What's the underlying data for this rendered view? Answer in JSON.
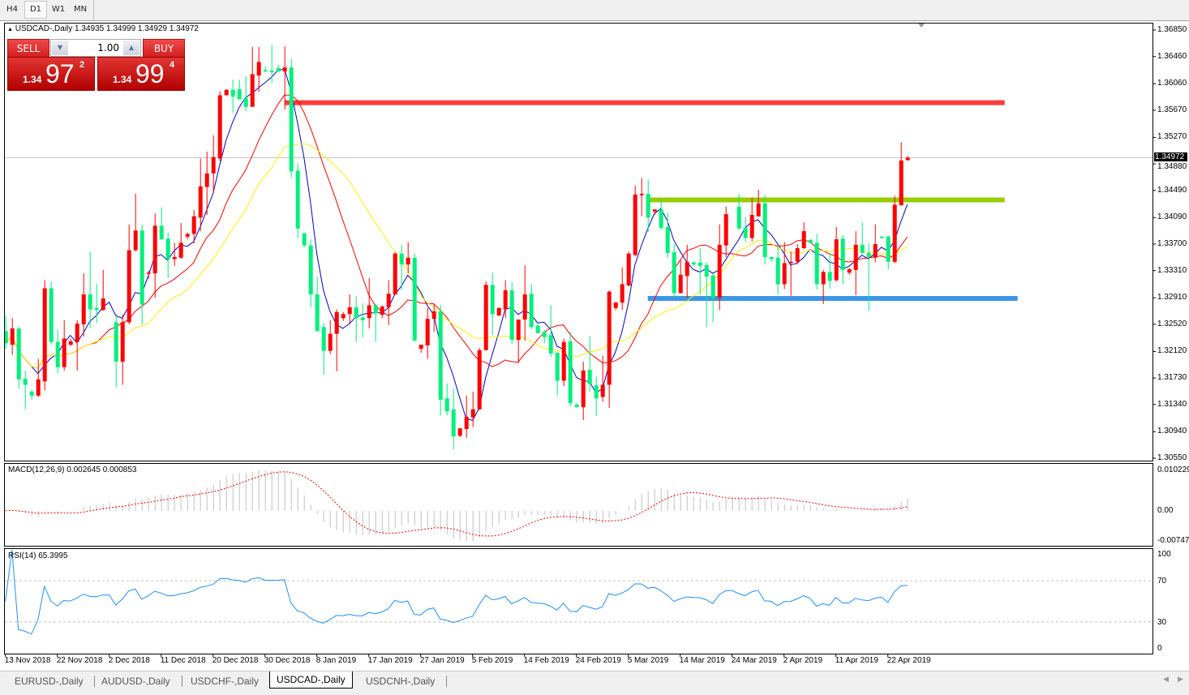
{
  "toolbar": {
    "timeframes": [
      {
        "label": "H4",
        "active": false
      },
      {
        "label": "D1",
        "active": true
      },
      {
        "label": "W1",
        "active": false
      },
      {
        "label": "MN",
        "active": false
      }
    ]
  },
  "chart": {
    "symbol_info": "USDCAD-,Daily  1.34935 1.34999 1.34929 1.34972",
    "current_price": "1.34972",
    "price_axis": [
      "1.36850",
      "1.36460",
      "1.36060",
      "1.35670",
      "1.35270",
      "1.34880",
      "1.34490",
      "1.34090",
      "1.33700",
      "1.33310",
      "1.32910",
      "1.32520",
      "1.32120",
      "1.31730",
      "1.31340",
      "1.30940",
      "1.30550"
    ],
    "date_axis": [
      "13 Nov 2018",
      "22 Nov 2018",
      "2 Dec 2018",
      "11 Dec 2018",
      "20 Dec 2018",
      "30 Dec 2018",
      "8 Jan 2019",
      "17 Jan 2019",
      "27 Jan 2019",
      "5 Feb 2019",
      "14 Feb 2019",
      "24 Feb 2019",
      "5 Mar 2019",
      "14 Mar 2019",
      "24 Mar 2019",
      "2 Apr 2019",
      "11 Apr 2019",
      "22 Apr 2019"
    ]
  },
  "trade_panel": {
    "sell_label": "SELL",
    "buy_label": "BUY",
    "lot": "1.00",
    "down_arrow": "▼",
    "up_arrow": "▲",
    "sell_price": {
      "prefix": "1.34",
      "pips": "97",
      "fraction": "2"
    },
    "buy_price": {
      "prefix": "1.34",
      "pips": "99",
      "fraction": "4"
    }
  },
  "indicators": {
    "macd": {
      "label": "MACD(12,26,9) 0.002645 0.000853",
      "scale": [
        "0.010229",
        "0.00",
        "-0.007477"
      ]
    },
    "rsi": {
      "label": "RSI(14) 65.3995",
      "scale": [
        "100",
        "70",
        "30",
        "0"
      ]
    }
  },
  "tabs": [
    {
      "label": "EURUSD-,Daily",
      "active": false
    },
    {
      "label": "AUDUSD-,Daily",
      "active": false
    },
    {
      "label": "USDCHF-,Daily",
      "active": false
    },
    {
      "label": "USDCAD-,Daily",
      "active": true
    },
    {
      "label": "USDCNH-,Daily",
      "active": false
    }
  ],
  "colors": {
    "bull_candle": "#ff0000",
    "bear_candle": "#00f07c",
    "ma_fast": "#0000c8",
    "ma_mid": "#ff0000",
    "ma_slow": "#ffee00",
    "resistance_line": "#ff3b3b",
    "range_top_line": "#99cc00",
    "support_line": "#3c96e6",
    "macd_hist": "#c0c0c0",
    "macd_signal": "#ff0000",
    "rsi_line": "#1e90ff"
  },
  "chart_data": {
    "type": "candlestick",
    "symbol": "USDCAD-",
    "timeframe": "Daily",
    "ylim": [
      1.3055,
      1.3685
    ],
    "ohlc_format": [
      "open",
      "high",
      "low",
      "close"
    ],
    "candles": [
      [
        1.3242,
        1.3264,
        1.3216,
        1.3224
      ],
      [
        1.3222,
        1.3261,
        1.3207,
        1.3246
      ],
      [
        1.3246,
        1.3248,
        1.3157,
        1.3171
      ],
      [
        1.3172,
        1.3184,
        1.3127,
        1.3163
      ],
      [
        1.3153,
        1.3155,
        1.3141,
        1.3147
      ],
      [
        1.3147,
        1.3201,
        1.3145,
        1.3171
      ],
      [
        1.3168,
        1.3317,
        1.3155,
        1.3305
      ],
      [
        1.3305,
        1.3315,
        1.3222,
        1.3226
      ],
      [
        1.3226,
        1.3244,
        1.318,
        1.3189
      ],
      [
        1.3189,
        1.3258,
        1.3184,
        1.3231
      ],
      [
        1.3222,
        1.3231,
        1.322,
        1.3227
      ],
      [
        1.3226,
        1.3258,
        1.3184,
        1.3253
      ],
      [
        1.3252,
        1.3327,
        1.3234,
        1.3296
      ],
      [
        1.3296,
        1.3359,
        1.3246,
        1.3274
      ],
      [
        1.3276,
        1.3311,
        1.3254,
        1.3273
      ],
      [
        1.3273,
        1.3332,
        1.3272,
        1.329
      ],
      null,
      [
        1.3255,
        1.3267,
        1.3159,
        1.3197
      ],
      [
        1.3197,
        1.3266,
        1.3163,
        1.3255
      ],
      [
        1.3255,
        1.3399,
        1.3252,
        1.3361
      ],
      [
        1.3361,
        1.3444,
        1.3359,
        1.339
      ],
      [
        1.339,
        1.3399,
        1.3252,
        1.3281
      ],
      [
        1.3327,
        1.3331,
        1.3319,
        1.3328
      ],
      [
        1.3327,
        1.3415,
        1.3291,
        1.3397
      ],
      [
        1.3397,
        1.3424,
        1.3376,
        1.3377
      ],
      [
        1.3378,
        1.3387,
        1.332,
        1.3348
      ],
      [
        1.3348,
        1.3372,
        1.3338,
        1.3351
      ],
      [
        1.335,
        1.3401,
        1.3348,
        1.3372
      ],
      [
        1.3381,
        1.3387,
        1.3377,
        1.3385
      ],
      [
        1.3385,
        1.342,
        1.3371,
        1.3411
      ],
      [
        1.3409,
        1.3496,
        1.3389,
        1.3455
      ],
      [
        1.3454,
        1.3506,
        1.3413,
        1.3474
      ],
      [
        1.3474,
        1.353,
        1.3445,
        1.3498
      ],
      [
        1.3496,
        1.3595,
        1.3492,
        1.3589
      ],
      [
        1.3589,
        1.3598,
        1.3589,
        1.3597
      ],
      [
        1.3597,
        1.3612,
        1.3563,
        1.3587
      ],
      [
        1.3598,
        1.3612,
        1.3583,
        1.3583
      ],
      [
        1.3585,
        1.3617,
        1.3566,
        1.3572
      ],
      [
        1.3572,
        1.366,
        1.3572,
        1.362
      ],
      [
        1.3618,
        1.366,
        1.3594,
        1.3638
      ],
      [
        1.3626,
        1.3631,
        1.3623,
        1.3624
      ],
      [
        1.3625,
        1.3663,
        1.3607,
        1.3623
      ],
      [
        1.3629,
        1.3634,
        1.3623,
        1.3624
      ],
      [
        1.3624,
        1.3661,
        1.3568,
        1.363
      ],
      [
        1.363,
        1.3643,
        1.3468,
        1.3477
      ],
      [
        1.3478,
        1.3489,
        1.3379,
        1.3393
      ],
      [
        1.3386,
        1.3386,
        1.3365,
        1.3368
      ],
      [
        1.3368,
        1.3377,
        1.3277,
        1.3296
      ],
      [
        1.3296,
        1.3322,
        1.3241,
        1.3242
      ],
      [
        1.3248,
        1.3254,
        1.3178,
        1.3213
      ],
      [
        1.3213,
        1.3258,
        1.3208,
        1.3238
      ],
      [
        1.3238,
        1.3274,
        1.3183,
        1.327
      ],
      [
        1.3261,
        1.327,
        1.3257,
        1.3267
      ],
      [
        1.3267,
        1.3296,
        1.3252,
        1.3277
      ],
      [
        1.3277,
        1.3294,
        1.3226,
        1.3261
      ],
      [
        1.3262,
        1.3283,
        1.3233,
        1.3258
      ],
      [
        1.3261,
        1.332,
        1.3246,
        1.328
      ],
      [
        1.328,
        1.3283,
        1.3226,
        1.3268
      ],
      [
        1.3266,
        1.328,
        1.3261,
        1.3278
      ],
      [
        1.3277,
        1.3317,
        1.3251,
        1.3297
      ],
      [
        1.3296,
        1.3358,
        1.3296,
        1.3356
      ],
      [
        1.3356,
        1.3369,
        1.3303,
        1.334
      ],
      [
        1.334,
        1.3373,
        1.3327,
        1.335
      ],
      [
        1.335,
        1.3356,
        1.3227,
        1.3228
      ],
      [
        1.3216,
        1.3222,
        1.321,
        1.3222
      ],
      [
        1.3221,
        1.3276,
        1.3201,
        1.326
      ],
      [
        1.326,
        1.3282,
        1.3241,
        1.3271
      ],
      [
        1.3271,
        1.328,
        1.3118,
        1.3141
      ],
      [
        1.3143,
        1.3165,
        1.3118,
        1.3124
      ],
      [
        1.3127,
        1.3157,
        1.3068,
        1.3087
      ],
      [
        1.3088,
        1.3099,
        1.3086,
        1.3099
      ],
      [
        1.3098,
        1.3147,
        1.3085,
        1.3116
      ],
      [
        1.3115,
        1.3153,
        1.3101,
        1.3127
      ],
      [
        1.3127,
        1.3217,
        1.3126,
        1.3214
      ],
      [
        1.3214,
        1.3315,
        1.3214,
        1.331
      ],
      [
        1.331,
        1.3328,
        1.3236,
        1.3267
      ],
      [
        1.3265,
        1.3277,
        1.3264,
        1.3276
      ],
      [
        1.3274,
        1.3317,
        1.3261,
        1.3302
      ],
      [
        1.3302,
        1.3314,
        1.3223,
        1.3229
      ],
      [
        1.3229,
        1.3259,
        1.3195,
        1.3259
      ],
      [
        1.3259,
        1.3339,
        1.3228,
        1.3296
      ],
      [
        1.3297,
        1.3311,
        1.3245,
        1.3248
      ],
      [
        1.325,
        1.3253,
        1.3239,
        1.3239
      ],
      [
        1.3241,
        1.3244,
        1.3224,
        1.3233
      ],
      [
        1.3236,
        1.328,
        1.3204,
        1.3209
      ],
      [
        1.321,
        1.3212,
        1.3148,
        1.3169
      ],
      [
        1.3169,
        1.3231,
        1.3161,
        1.3226
      ],
      [
        1.3227,
        1.3241,
        1.3131,
        1.3136
      ],
      [
        1.3134,
        1.3136,
        1.3129,
        1.313
      ],
      [
        1.313,
        1.3197,
        1.3111,
        1.3184
      ],
      [
        1.3185,
        1.3235,
        1.3153,
        1.3164
      ],
      [
        1.3162,
        1.3175,
        1.3117,
        1.3143
      ],
      [
        1.3145,
        1.3206,
        1.3138,
        1.3163
      ],
      [
        1.3163,
        1.3302,
        1.3129,
        1.33
      ],
      [
        1.3276,
        1.3285,
        1.3273,
        1.3284
      ],
      [
        1.3284,
        1.3336,
        1.3273,
        1.3311
      ],
      [
        1.3309,
        1.3359,
        1.3308,
        1.3356
      ],
      [
        1.3354,
        1.3456,
        1.3352,
        1.3443
      ],
      [
        1.3442,
        1.3467,
        1.3411,
        1.3444
      ],
      [
        1.3444,
        1.3465,
        1.3388,
        1.3409
      ],
      [
        1.3418,
        1.3421,
        1.3413,
        1.3421
      ],
      [
        1.3421,
        1.3438,
        1.3391,
        1.3394
      ],
      [
        1.3395,
        1.3416,
        1.335,
        1.3357
      ],
      [
        1.3358,
        1.337,
        1.3291,
        1.3298
      ],
      [
        1.3298,
        1.3346,
        1.3297,
        1.3325
      ],
      [
        1.3323,
        1.3369,
        1.3291,
        1.3344
      ],
      [
        1.3343,
        1.3345,
        1.3338,
        1.334
      ],
      [
        1.3343,
        1.3364,
        1.3296,
        1.3338
      ],
      [
        1.3339,
        1.3343,
        1.3248,
        1.3322
      ],
      [
        1.3324,
        1.3326,
        1.3255,
        1.3291
      ],
      [
        1.3291,
        1.3399,
        1.3273,
        1.3369
      ],
      [
        1.3368,
        1.3425,
        1.3351,
        1.3414
      ],
      null,
      [
        1.3425,
        1.3444,
        1.3391,
        1.3393
      ],
      [
        1.3394,
        1.341,
        1.3373,
        1.3379
      ],
      [
        1.3379,
        1.3438,
        1.3374,
        1.3413
      ],
      [
        1.3411,
        1.345,
        1.341,
        1.343
      ],
      [
        1.343,
        1.3442,
        1.334,
        1.3351
      ],
      [
        1.3351,
        1.3351,
        1.3345,
        1.3348
      ],
      [
        1.335,
        1.3369,
        1.3296,
        1.3311
      ],
      [
        1.3311,
        1.3373,
        1.3304,
        1.3342
      ],
      [
        1.3342,
        1.3359,
        1.3294,
        1.3344
      ],
      [
        1.3344,
        1.337,
        1.334,
        1.3364
      ],
      [
        1.3364,
        1.3402,
        1.3363,
        1.3389
      ],
      [
        1.3376,
        1.3378,
        1.3371,
        1.3372
      ],
      [
        1.3372,
        1.3385,
        1.3303,
        1.3311
      ],
      [
        1.3311,
        1.3332,
        1.3282,
        1.3329
      ],
      [
        1.3329,
        1.3357,
        1.3304,
        1.3316
      ],
      [
        1.3317,
        1.3395,
        1.3315,
        1.3377
      ],
      [
        1.3378,
        1.3384,
        1.3311,
        1.3332
      ],
      [
        1.3328,
        1.3335,
        1.3325,
        1.3333
      ],
      [
        1.3332,
        1.3389,
        1.3295,
        1.3369
      ],
      [
        1.3369,
        1.3402,
        1.3355,
        1.3357
      ],
      [
        1.3357,
        1.3371,
        1.3272,
        1.3351
      ],
      [
        1.335,
        1.3399,
        1.3343,
        1.337
      ],
      [
        1.3381,
        1.3382,
        1.3378,
        1.3379
      ],
      [
        1.3381,
        1.3383,
        1.3333,
        1.3344
      ],
      [
        1.3344,
        1.3441,
        1.3342,
        1.3428
      ],
      [
        1.3427,
        1.352,
        1.3427,
        1.3493
      ],
      [
        1.34935,
        1.34999,
        1.34929,
        1.34972
      ]
    ],
    "horizontal_levels": [
      {
        "name": "resistance",
        "price": 1.3578,
        "from_bar": 43,
        "to_bar": 154,
        "color_key": "resistance_line"
      },
      {
        "name": "range-top",
        "price": 1.3435,
        "from_bar": 99,
        "to_bar": 154,
        "color_key": "range_top_line"
      },
      {
        "name": "support",
        "price": 1.329,
        "from_bar": 99,
        "to_bar": 156,
        "color_key": "support_line"
      }
    ],
    "macd_range": [
      -0.007477,
      0.010229
    ],
    "rsi_levels": [
      70,
      30
    ]
  }
}
